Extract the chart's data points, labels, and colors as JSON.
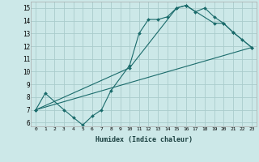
{
  "xlabel": "Humidex (Indice chaleur)",
  "background_color": "#cce8e8",
  "grid_color": "#aacccc",
  "line_color": "#1a6b6b",
  "xlim": [
    -0.5,
    23.5
  ],
  "ylim": [
    5.7,
    15.5
  ],
  "xticks": [
    0,
    1,
    2,
    3,
    4,
    5,
    6,
    7,
    8,
    9,
    10,
    11,
    12,
    13,
    14,
    15,
    16,
    17,
    18,
    19,
    20,
    21,
    22,
    23
  ],
  "yticks": [
    6,
    7,
    8,
    9,
    10,
    11,
    12,
    13,
    14,
    15
  ],
  "line1_x": [
    0,
    1,
    3,
    4,
    5,
    6,
    7,
    8,
    10,
    11,
    12,
    13,
    14,
    15,
    16,
    17,
    18,
    19,
    20,
    21,
    22,
    23
  ],
  "line1_y": [
    7.0,
    8.3,
    7.0,
    6.4,
    5.8,
    6.5,
    7.0,
    8.5,
    10.5,
    13.0,
    14.1,
    14.1,
    14.3,
    15.0,
    15.2,
    14.7,
    15.0,
    14.3,
    13.8,
    13.1,
    12.5,
    11.9
  ],
  "line2_x": [
    0,
    10,
    15,
    16,
    19,
    20,
    21,
    23
  ],
  "line2_y": [
    7.0,
    10.3,
    15.0,
    15.2,
    13.8,
    13.8,
    13.1,
    11.9
  ],
  "line3_x": [
    0,
    23
  ],
  "line3_y": [
    7.0,
    11.9
  ]
}
